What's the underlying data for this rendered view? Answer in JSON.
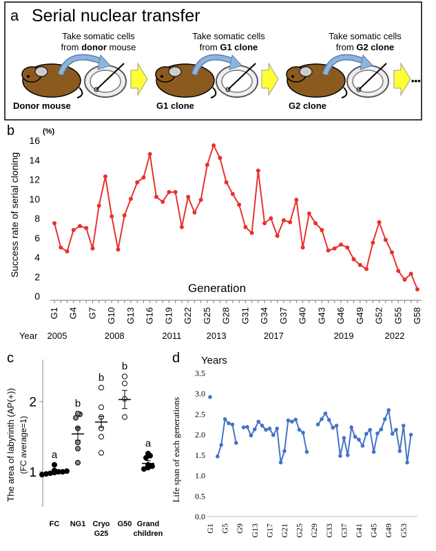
{
  "panel_a": {
    "letter": "a",
    "title": "Serial nuclear transfer",
    "steps": [
      {
        "pre": "Take somatic cells",
        "from": "from ",
        "bold": "donor",
        "post": " mouse",
        "subject": "Donor mouse"
      },
      {
        "pre": "Take somatic cells",
        "from": "from ",
        "bold": "G1 clone",
        "post": "",
        "subject": "G1 clone"
      },
      {
        "pre": "Take somatic cells",
        "from": "from ",
        "bold": "G2 clone",
        "post": "",
        "subject": "G2 clone"
      }
    ],
    "ellipsis": "•••",
    "colors": {
      "mouse": "#8B5A1E",
      "arrow": "#8FB4DC",
      "next_arrow": "#FFFF33",
      "border": "#000000"
    }
  },
  "chart_data": [
    {
      "id": "b",
      "letter": "b",
      "type": "line",
      "unit_label": "(%)",
      "ylabel": "Success rate of serial cloning",
      "xlabel": "Generation",
      "ylim": [
        0,
        16
      ],
      "yticks": [
        0,
        2,
        4,
        6,
        8,
        10,
        12,
        14,
        16
      ],
      "color": "#E8312C",
      "x_start": 1,
      "x_end": 58,
      "values": [
        7.5,
        5.0,
        4.6,
        6.8,
        7.2,
        7.0,
        4.9,
        9.3,
        12.3,
        8.2,
        4.8,
        8.3,
        10.0,
        11.7,
        12.2,
        14.6,
        10.2,
        9.7,
        10.7,
        10.7,
        7.1,
        10.2,
        8.6,
        9.9,
        13.5,
        15.5,
        14.2,
        11.7,
        10.5,
        9.4,
        7.1,
        6.5,
        12.9,
        7.5,
        8.0,
        6.2,
        7.8,
        7.6,
        9.9,
        5.0,
        8.5,
        7.5,
        6.8,
        4.7,
        4.9,
        5.3,
        5.0,
        3.8,
        3.2,
        2.8,
        5.5,
        7.6,
        5.8,
        4.5,
        2.6,
        1.7,
        2.3,
        0.7
      ],
      "xtick_labels": [
        "G1",
        "G4",
        "G7",
        "G10",
        "G13",
        "G16",
        "G19",
        "G22",
        "G25",
        "G28",
        "G31",
        "G34",
        "G37",
        "G40",
        "G43",
        "G46",
        "G49",
        "G52",
        "G55",
        "G58"
      ],
      "year_axis": {
        "label": "Year",
        "entries": [
          {
            "year": "2005",
            "gen": 1
          },
          {
            "year": "2008",
            "gen": 10
          },
          {
            "year": "2011",
            "gen": 19
          },
          {
            "year": "2013",
            "gen": 26
          },
          {
            "year": "2017",
            "gen": 35
          },
          {
            "year": "2019",
            "gen": 46
          },
          {
            "year": "2022",
            "gen": 54
          }
        ]
      }
    },
    {
      "id": "c",
      "letter": "c",
      "type": "scatter",
      "ylabel": "The area of labyrinth (AP(+))",
      "ylabel2": "(FC average=1)",
      "ylim": [
        0.5,
        2.6
      ],
      "yticks": [
        1,
        2
      ],
      "groups": [
        {
          "label": "FC",
          "label2": "",
          "letter": "a",
          "fill": "#000000",
          "mean": 1.0,
          "sem": 0.03,
          "points": [
            0.96,
            0.97,
            0.98,
            0.99,
            1.0,
            1.0,
            1.01,
            1.02,
            1.1
          ]
        },
        {
          "label": "NG1",
          "label2": "",
          "letter": "b",
          "fill": "#888888",
          "mean": 1.54,
          "sem": 0.09,
          "points": [
            1.13,
            1.33,
            1.42,
            1.62,
            1.77,
            1.82,
            1.83
          ]
        },
        {
          "label": "Cryo",
          "label2": "G25",
          "letter": "b",
          "fill": "#FFFFFF",
          "mean": 1.71,
          "sem": 0.08,
          "points": [
            1.27,
            1.5,
            1.62,
            1.78,
            1.92,
            2.2
          ]
        },
        {
          "label": "G50",
          "label2": "",
          "letter": "b",
          "fill": "#FFFFFF",
          "mean": 2.03,
          "sem": 0.13,
          "points": [
            1.78,
            2.04,
            2.26,
            2.36
          ]
        },
        {
          "label": "Grand",
          "label2": "children",
          "letter": "a",
          "fill": "#000000",
          "mean": 1.12,
          "sem": 0.04,
          "points": [
            1.04,
            1.06,
            1.08,
            1.1,
            1.2,
            1.23,
            1.26
          ]
        }
      ]
    },
    {
      "id": "d",
      "letter": "d",
      "type": "line",
      "unit_label": "Years",
      "ylabel": "Life span of each generations",
      "ylim": [
        0,
        3.5
      ],
      "yticks": [
        0.0,
        0.5,
        1.0,
        1.5,
        2.0,
        2.5,
        3.0,
        3.5
      ],
      "ytick_labels": [
        "0.0",
        "0.5",
        "1.0",
        "1.5",
        "2.0",
        "2.5",
        "3.0",
        "3.5"
      ],
      "color": "#4472C4",
      "x_start": 1,
      "x_end": 56,
      "values": [
        2.92,
        null,
        1.47,
        1.75,
        2.38,
        2.28,
        2.25,
        1.8,
        null,
        2.18,
        2.19,
        1.98,
        2.13,
        2.32,
        2.22,
        2.12,
        2.15,
        1.99,
        2.15,
        1.32,
        1.6,
        2.35,
        2.32,
        2.37,
        2.12,
        2.05,
        1.58,
        null,
        null,
        2.25,
        2.38,
        2.52,
        2.36,
        2.17,
        2.22,
        1.48,
        1.92,
        1.5,
        2.18,
        1.95,
        1.88,
        1.73,
        2.02,
        2.12,
        1.58,
        2.03,
        2.13,
        2.38,
        2.6,
        2.02,
        2.12,
        1.6,
        2.22,
        1.32,
        2.0,
        null
      ],
      "xtick_labels": [
        "G1",
        "G5",
        "G9",
        "G13",
        "G17",
        "G21",
        "G25",
        "G29",
        "G33",
        "G37",
        "G41",
        "G45",
        "G49",
        "G53"
      ]
    }
  ]
}
